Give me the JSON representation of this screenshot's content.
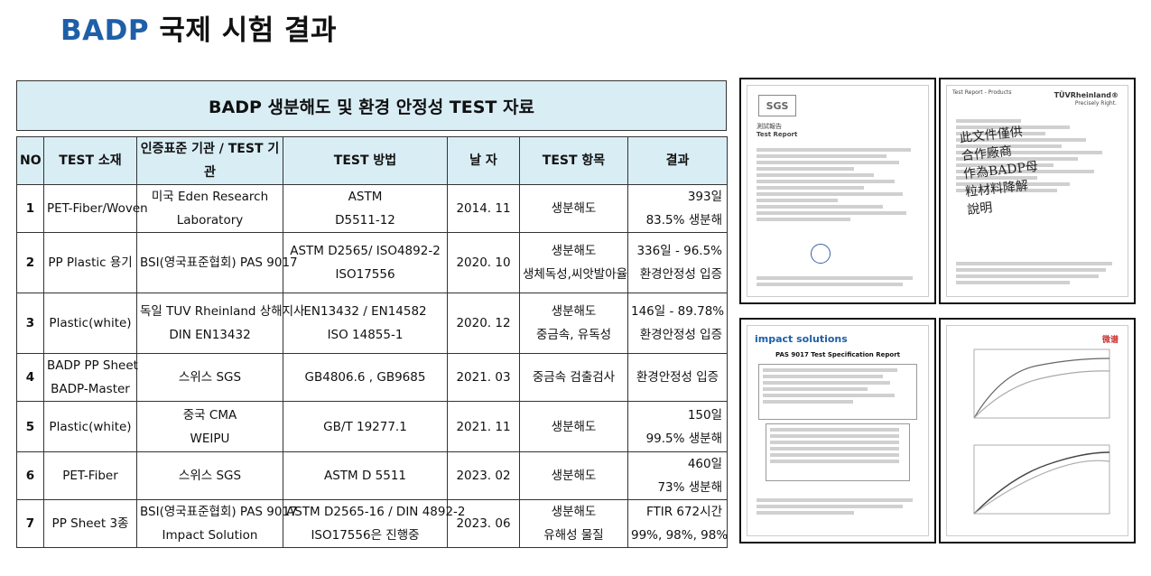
{
  "page": {
    "brand": "BADP",
    "title_rest": "국제 시험 결과"
  },
  "table": {
    "title": "BADP 생분해도 및 환경 안정성 TEST 자료",
    "columns": [
      "NO",
      "TEST 소재",
      "인증표준 기관 / TEST 기관",
      "TEST 방법",
      "날 자",
      "TEST 항목",
      "결과"
    ],
    "rows": [
      {
        "no": "1",
        "material": [
          "PET-Fiber/Woven"
        ],
        "institution": [
          "미국 Eden Research",
          "Laboratory"
        ],
        "method": [
          "ASTM",
          "D5511-12"
        ],
        "date": "2014. 11",
        "item": [
          "생분해도"
        ],
        "result": [
          "393일",
          "83.5% 생분해"
        ]
      },
      {
        "no": "2",
        "material": [
          "PP Plastic 용기"
        ],
        "institution": [
          "BSI(영국표준협회) PAS 9017"
        ],
        "method": [
          "ASTM D2565/ ISO4892-2",
          "ISO17556"
        ],
        "date": "2020. 10",
        "item": [
          "생분해도",
          "생체독성,씨앗발아율"
        ],
        "result": [
          "336일 - 96.5%",
          "환경안정성 입증"
        ]
      },
      {
        "no": "3",
        "material": [
          "Plastic(white)"
        ],
        "institution": [
          "독일 TUV Rheinland 상해지사",
          "DIN EN13432"
        ],
        "method": [
          "EN13432 / EN14582",
          "ISO 14855-1"
        ],
        "date": "2020. 12",
        "item": [
          "생분해도",
          "중금속, 유독성"
        ],
        "result": [
          "146일 - 89.78%",
          "환경안정성 입증"
        ]
      },
      {
        "no": "4",
        "material": [
          "BADP PP Sheet",
          "BADP-Master"
        ],
        "institution": [
          "스위스 SGS"
        ],
        "method": [
          "GB4806.6 , GB9685"
        ],
        "date": "2021. 03",
        "item": [
          "중금속 검출검사"
        ],
        "result": [
          "환경안정성 입증"
        ]
      },
      {
        "no": "5",
        "material": [
          "Plastic(white)"
        ],
        "institution": [
          "중국 CMA",
          "WEIPU"
        ],
        "method": [
          "GB/T 19277.1"
        ],
        "date": "2021. 11",
        "item": [
          "생분해도"
        ],
        "result": [
          "150일",
          "99.5% 생분해"
        ]
      },
      {
        "no": "6",
        "material": [
          "PET-Fiber"
        ],
        "institution": [
          "스위스 SGS"
        ],
        "method": [
          "ASTM D 5511"
        ],
        "date": "2023. 02",
        "item": [
          "생분해도"
        ],
        "result": [
          "460일",
          "73% 생분해"
        ]
      },
      {
        "no": "7",
        "material": [
          "PP Sheet 3종"
        ],
        "institution": [
          "BSI(영국표준협회) PAS 9017",
          "Impact Solution"
        ],
        "method": [
          "ASTM D2565-16 / DIN 4892-2",
          "ISO17556은 진행중"
        ],
        "date": "2023. 06",
        "item": [
          "생분해도",
          "유해성 물질"
        ],
        "result": [
          "FTIR 672시간",
          "99%, 98%, 98%"
        ]
      }
    ]
  },
  "documents": {
    "sgs": {
      "logo": "SGS",
      "heading": "測試報告",
      "subheading": "Test Report"
    },
    "tuv": {
      "logo": "TÜVRheinland®",
      "tagline": "Precisely Right.",
      "header": "Test Report - Products",
      "stamp": [
        "此文件僅供",
        "合作廠商",
        "作為BADP母",
        "粒材料降解",
        "說明"
      ]
    },
    "impact": {
      "logo": "impact solutions",
      "heading": "PAS 9017 Test Specification Report"
    },
    "weipu": {
      "logo": "微谱"
    }
  }
}
